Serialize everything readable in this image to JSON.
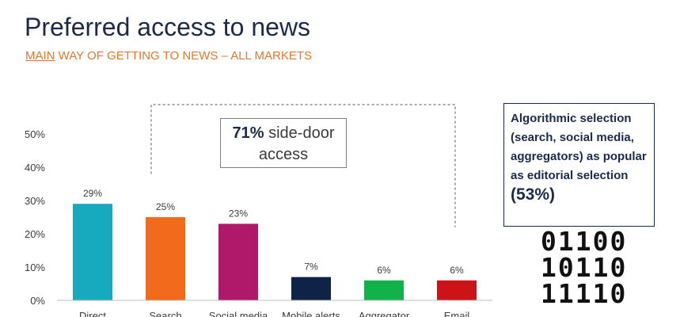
{
  "header": {
    "title": "Preferred access to news",
    "subtitle_underlined": "MAIN",
    "subtitle_rest": " WAY OF GETTING TO NEWS – ALL MARKETS"
  },
  "callout": {
    "strong": "71%",
    "text": " side-door",
    "text2": "access"
  },
  "sidebox": {
    "text": "Algorithmic selection (search, social media, aggregators) as popular as editorial selection ",
    "highlight": "(53%)"
  },
  "binary": [
    "01100",
    "10110",
    "11110"
  ],
  "colors": {
    "title": "#1b2a4a",
    "subtitle": "#e8762c",
    "axis": "#bfbfbf",
    "bracket": "#555555"
  },
  "chart_data": {
    "type": "bar",
    "title": "",
    "xlabel": "",
    "ylabel": "",
    "categories": [
      "Direct",
      "Search",
      "Social media",
      "Mobile alerts",
      "Aggregator",
      "Email"
    ],
    "values": [
      29,
      25,
      23,
      7,
      6,
      6
    ],
    "value_labels": [
      "29%",
      "25%",
      "23%",
      "7%",
      "6%",
      "6%"
    ],
    "bar_colors": [
      "#17a9bd",
      "#f26b1d",
      "#b0186a",
      "#0f2347",
      "#12b24a",
      "#cc1418"
    ],
    "ylim": [
      0,
      50
    ],
    "yticks": [
      0,
      10,
      20,
      30,
      40,
      50
    ],
    "ytick_labels": [
      "0%",
      "10%",
      "20%",
      "30%",
      "40%",
      "50%"
    ],
    "grid": false,
    "legend": "none"
  }
}
